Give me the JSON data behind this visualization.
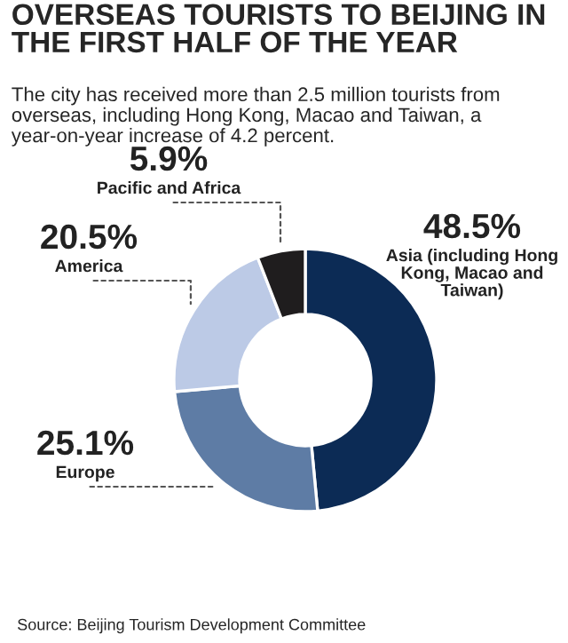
{
  "chart_data": {
    "type": "donut",
    "title": "OVERSEAS TOURISTS TO BEIJING IN THE FIRST HALF OF THE YEAR",
    "subtitle": "The city has received more than 2.5 million tourists from overseas, including Hong Kong, Macao and Taiwan, a year-on-year increase of 4.2 percent.",
    "categories": [
      "Asia (including Hong\nKong, Macao and\nTaiwan)",
      "Europe",
      "America",
      "Pacific and Africa"
    ],
    "values": [
      48.5,
      25.1,
      20.5,
      5.9
    ],
    "value_labels": [
      "48.5%",
      "25.1%",
      "20.5%",
      "5.9%"
    ],
    "colors": [
      "#0c2b55",
      "#5e7ca5",
      "#bccae6",
      "#1f1d1e"
    ],
    "annotations": [
      "Source: Beijing Tourism Development Committee"
    ],
    "legend": false
  }
}
